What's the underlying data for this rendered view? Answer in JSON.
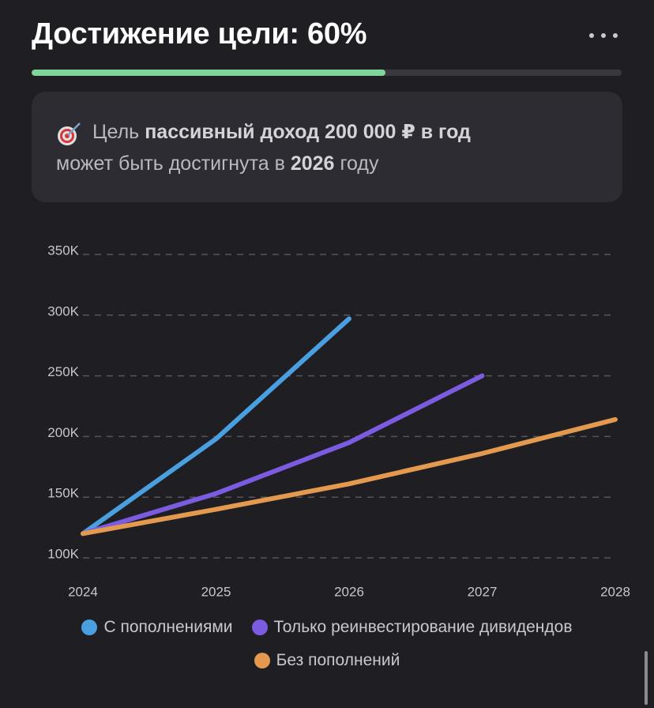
{
  "header": {
    "title": "Достижение цели: 60%",
    "progress": 60
  },
  "goal_card": {
    "line1": [
      "Цель",
      "пассивный доход 200 000 ₽ в год"
    ],
    "line2": [
      "может быть достигнута в",
      "2026",
      "году"
    ]
  },
  "chart_data": {
    "type": "line",
    "categories": [
      "2024",
      "2025",
      "2026",
      "2027",
      "2028"
    ],
    "series": [
      {
        "name": "С пополнениями",
        "color": "#4a9fe0",
        "values": [
          120000,
          198000,
          297000,
          null,
          null
        ]
      },
      {
        "name": "Только реинвестирование дивидендов",
        "color": "#7b5ce0",
        "values": [
          120000,
          153000,
          195000,
          250000,
          null
        ]
      },
      {
        "name": "Без пополнений",
        "color": "#e39a4f",
        "values": [
          120000,
          140000,
          161000,
          186000,
          214000
        ]
      }
    ],
    "ylim": [
      100000,
      350000
    ],
    "yticks": [
      {
        "value": 100000,
        "label": "100K"
      },
      {
        "value": 150000,
        "label": "150K"
      },
      {
        "value": 200000,
        "label": "200K"
      },
      {
        "value": 250000,
        "label": "250K"
      },
      {
        "value": 300000,
        "label": "300K"
      },
      {
        "value": 350000,
        "label": "350K"
      }
    ],
    "grid": true
  }
}
